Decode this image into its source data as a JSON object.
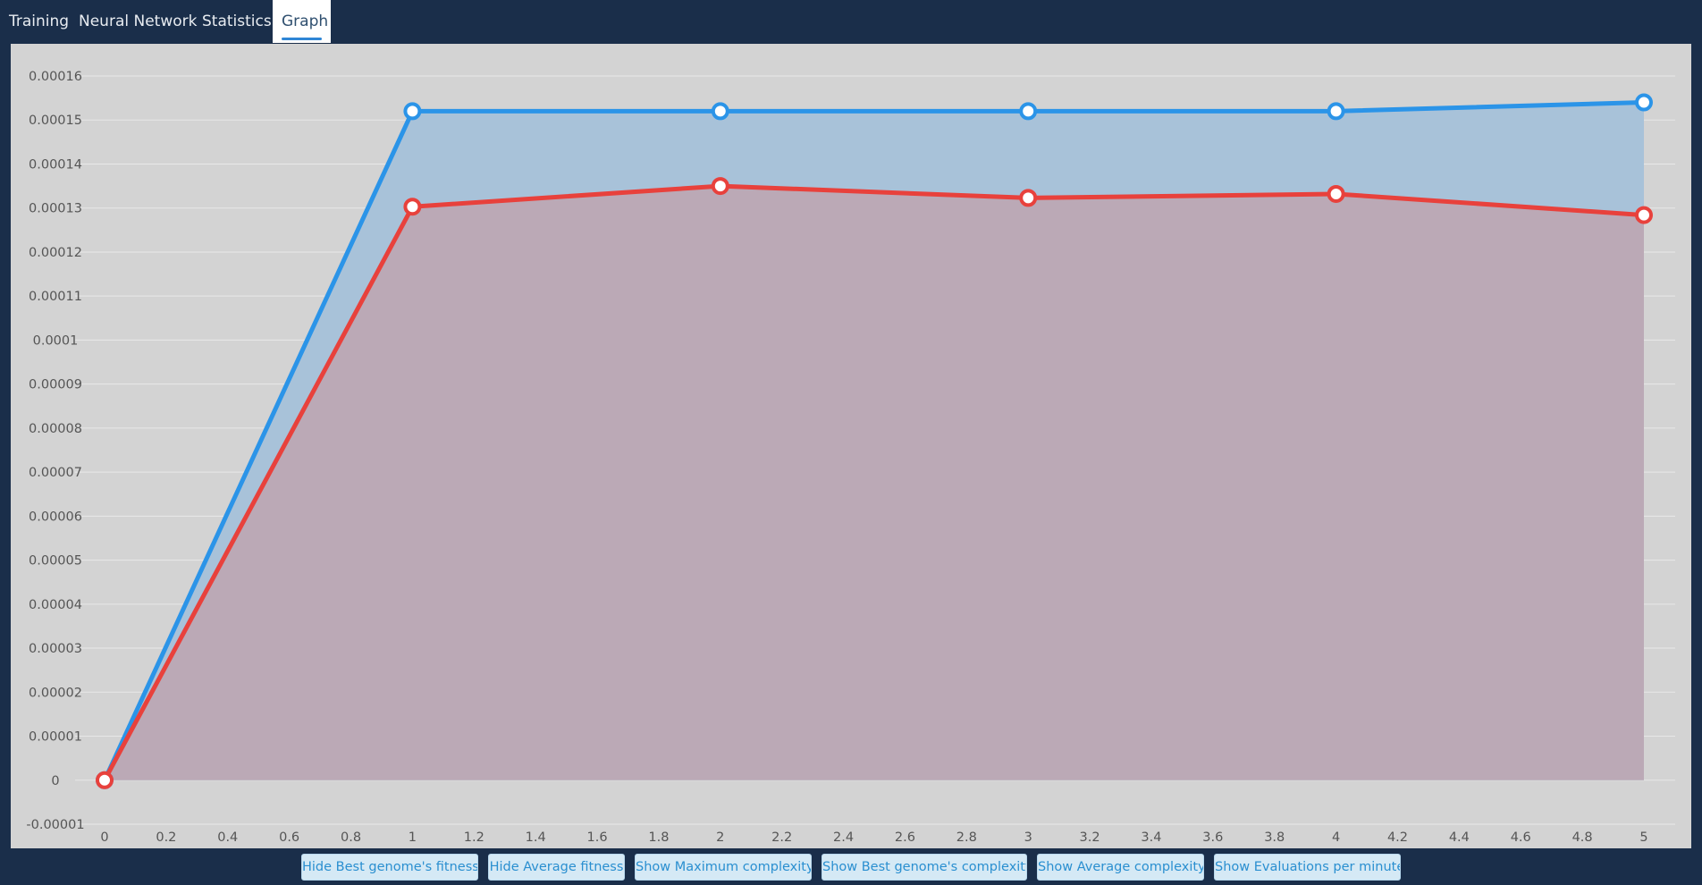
{
  "tabs": [
    {
      "label": "Training",
      "active": false
    },
    {
      "label": "Neural Network",
      "active": false
    },
    {
      "label": "Statistics",
      "active": false
    },
    {
      "label": "Graph",
      "active": true
    }
  ],
  "buttons": {
    "hide_best_fitness": "Hide Best genome's fitness",
    "hide_avg_fitness": "Hide Average fitness",
    "show_max_complexity": "Show Maximum complexity",
    "show_best_complexity": "Show Best genome's complexity",
    "show_avg_complexity": "Show Average complexity",
    "show_evals_per_minute": "Show Evaluations per minute"
  },
  "chart_data": {
    "type": "area",
    "xlim": [
      0,
      5
    ],
    "ylim": [
      -1e-05,
      0.00016
    ],
    "x_ticks": [
      "0",
      "0.2",
      "0.4",
      "0.6",
      "0.8",
      "1",
      "1.2",
      "1.4",
      "1.6",
      "1.8",
      "2",
      "2.2",
      "2.4",
      "2.6",
      "2.8",
      "3",
      "3.2",
      "3.4",
      "3.6",
      "3.8",
      "4",
      "4.2",
      "4.4",
      "4.6",
      "4.8",
      "5"
    ],
    "y_ticks": [
      "0.00016",
      "0.00015",
      "0.00014",
      "0.00013",
      "0.00012",
      "0.00011",
      "0.0001",
      "0.00009",
      "0.00008",
      "0.00007",
      "0.00006",
      "0.00005",
      "0.00004",
      "0.00003",
      "0.00002",
      "0.00001",
      "0",
      "-0.00001"
    ],
    "grid": true,
    "x": [
      0,
      1,
      2,
      3,
      4,
      5
    ],
    "series": [
      {
        "values": [
          0,
          0.000152,
          0.000152,
          0.000152,
          0.000152,
          0.000154
        ],
        "color": "#2b94e8",
        "fill": "#a8c2d9"
      },
      {
        "values": [
          0,
          0.0001303,
          0.000135,
          0.0001323,
          0.0001332,
          0.0001284
        ],
        "color": "#e8413c",
        "fill": "#bba9b6"
      }
    ]
  }
}
